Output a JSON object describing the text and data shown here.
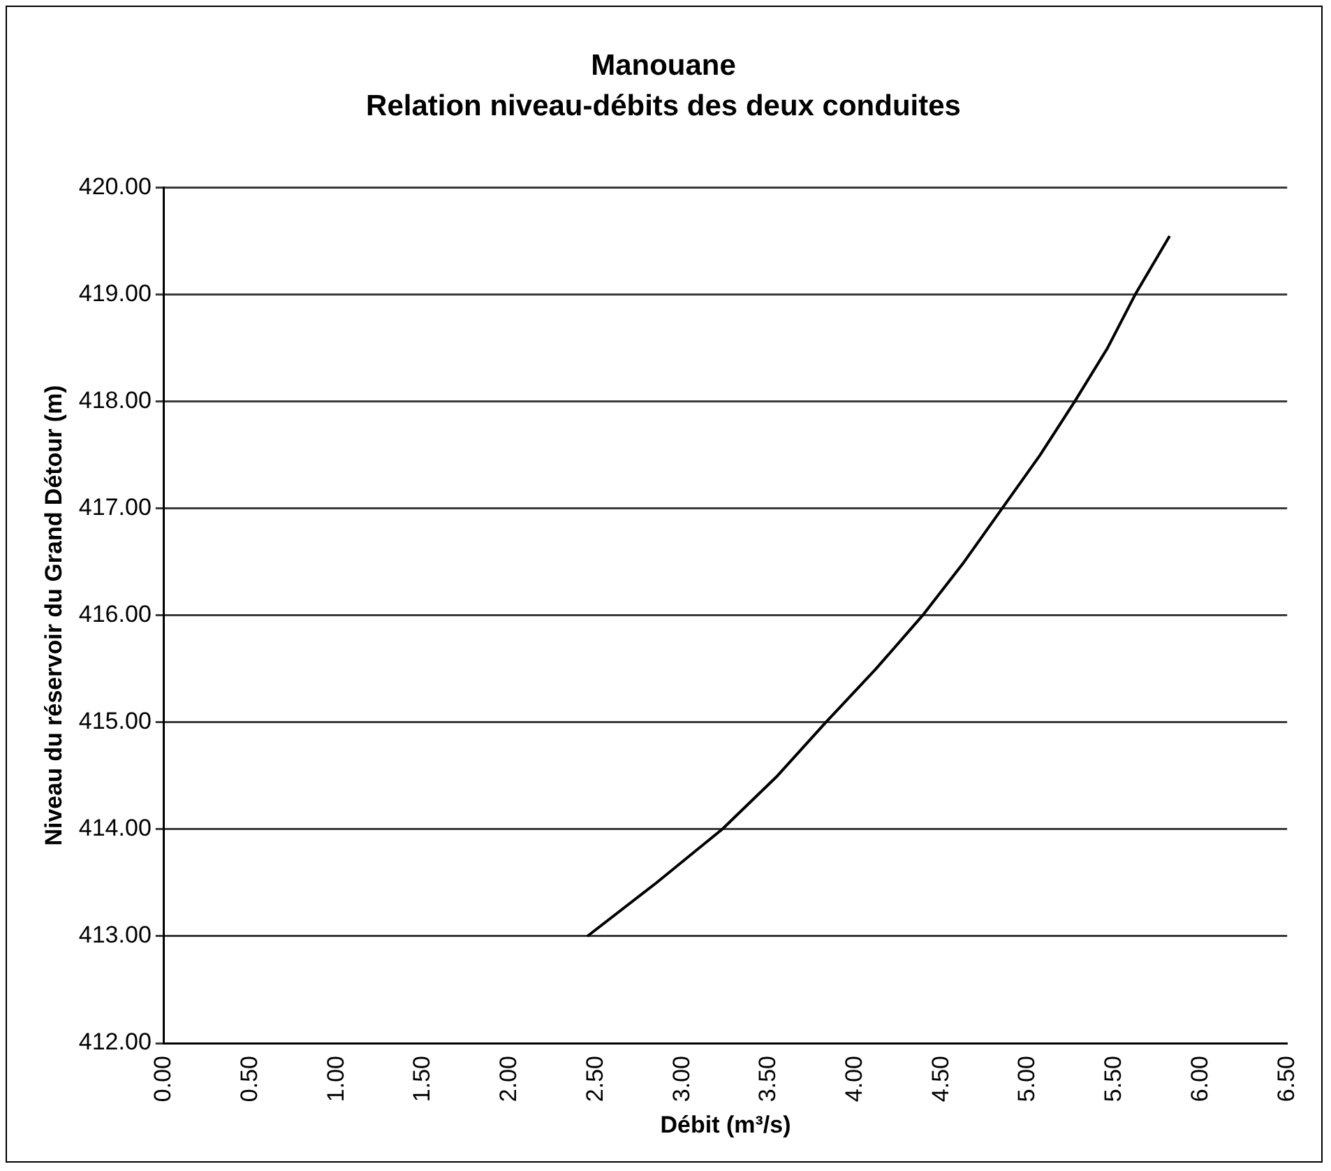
{
  "chart_data": {
    "type": "line",
    "title": "Manouane",
    "subtitle": "Relation niveau-débits des deux conduites",
    "xlabel": "Débit (m³/s)",
    "ylabel": "Niveau du réservoir du Grand Détour (m)",
    "x": [
      2.45,
      2.85,
      3.23,
      3.55,
      3.83,
      4.12,
      4.39,
      4.63,
      4.85,
      5.07,
      5.27,
      5.46,
      5.62,
      5.82
    ],
    "series": [
      {
        "color": "#000000",
        "values": [
          413,
          413.5,
          414,
          414.5,
          415,
          415.5,
          416,
          416.5,
          417,
          417.5,
          418,
          418.5,
          419,
          419.55
        ]
      }
    ],
    "xlim": [
      0,
      6.5
    ],
    "ylim": [
      412,
      420
    ],
    "xticks": [
      {
        "value": 0,
        "label": "0.00"
      },
      {
        "value": 0.5,
        "label": "0.50"
      },
      {
        "value": 1,
        "label": "1.00"
      },
      {
        "value": 1.5,
        "label": "1.50"
      },
      {
        "value": 2,
        "label": "2.00"
      },
      {
        "value": 2.5,
        "label": "2.50"
      },
      {
        "value": 3,
        "label": "3.00"
      },
      {
        "value": 3.5,
        "label": "3.50"
      },
      {
        "value": 4,
        "label": "4.00"
      },
      {
        "value": 4.5,
        "label": "4.50"
      },
      {
        "value": 5,
        "label": "5.00"
      },
      {
        "value": 5.5,
        "label": "5.50"
      },
      {
        "value": 6,
        "label": "6.00"
      },
      {
        "value": 6.5,
        "label": "6.50"
      }
    ],
    "yticks": [
      {
        "value": 412,
        "label": "412.00"
      },
      {
        "value": 413,
        "label": "413.00"
      },
      {
        "value": 414,
        "label": "414.00"
      },
      {
        "value": 415,
        "label": "415.00"
      },
      {
        "value": 416,
        "label": "416.00"
      },
      {
        "value": 417,
        "label": "417.00"
      },
      {
        "value": 418,
        "label": "418.00"
      },
      {
        "value": 419,
        "label": "419.00"
      },
      {
        "value": 420,
        "label": "420.00"
      }
    ],
    "grid": "y",
    "legend": false,
    "marker": "none",
    "line_style": "solid"
  }
}
